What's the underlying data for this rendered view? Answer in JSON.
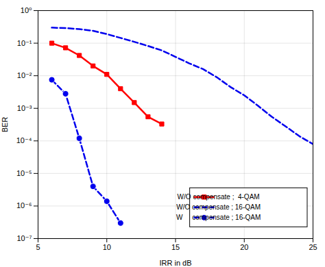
{
  "chart_data": {
    "type": "line",
    "xlabel": "IRR in dB",
    "ylabel": "BER",
    "xlim": [
      5,
      25
    ],
    "ylim": [
      1e-07,
      1
    ],
    "log": "y",
    "xticks": [
      5,
      10,
      15,
      20,
      25
    ],
    "yticks": [
      {
        "value": 1e-07,
        "label": "10⁻⁷"
      },
      {
        "value": 1e-06,
        "label": "10⁻⁶"
      },
      {
        "value": 1e-05,
        "label": "10⁻⁵"
      },
      {
        "value": 0.0001,
        "label": "10⁻⁴"
      },
      {
        "value": 0.001,
        "label": "10⁻³"
      },
      {
        "value": 0.01,
        "label": "10⁻²"
      },
      {
        "value": 0.1,
        "label": "10⁻¹"
      },
      {
        "value": 1,
        "label": "10⁰"
      }
    ],
    "grid": true,
    "legend": "lower right",
    "series": [
      {
        "name": "W/O compensate ;  4-QAM",
        "color": "#ff0000",
        "marker": "square",
        "line_style": "solid",
        "x": [
          6,
          7,
          8,
          9,
          10,
          11,
          12,
          13,
          14
        ],
        "values": [
          0.1,
          0.072,
          0.042,
          0.02,
          0.011,
          0.004,
          0.0015,
          0.00055,
          0.00033
        ]
      },
      {
        "name": "W/O compensate ; 16-QAM",
        "color": "#0000ee",
        "marker": "none",
        "line_style": "dashed",
        "x": [
          6,
          7,
          8,
          9,
          10,
          11,
          12,
          13,
          14,
          15,
          16,
          17,
          18,
          19,
          20,
          21,
          22,
          23,
          24,
          25
        ],
        "values": [
          0.3,
          0.29,
          0.27,
          0.24,
          0.19,
          0.145,
          0.11,
          0.082,
          0.06,
          0.038,
          0.024,
          0.016,
          0.009,
          0.0045,
          0.0025,
          0.0012,
          0.00055,
          0.00028,
          0.00014,
          8e-05
        ]
      },
      {
        "name": "W     compensate ; 16-QAM",
        "color": "#0000ee",
        "marker": "circle",
        "line_style": "dashed",
        "x": [
          6,
          7,
          8,
          9,
          10,
          11
        ],
        "values": [
          0.0075,
          0.0028,
          0.00012,
          4e-06,
          1.4e-06,
          3e-07
        ]
      }
    ]
  }
}
